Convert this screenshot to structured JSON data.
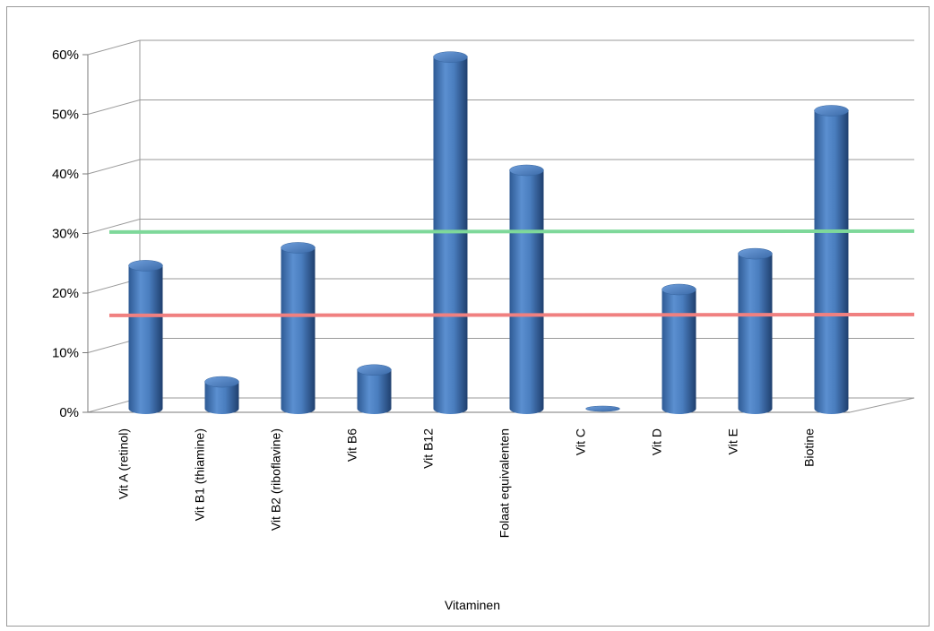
{
  "chart_data": {
    "type": "bar",
    "style": "3d-cylinder",
    "title": "",
    "xlabel": "Vitaminen",
    "ylabel": "",
    "categories": [
      "Vit A (retinol)",
      "Vit B1 (thiamine)",
      "Vit B2 (riboflavine)",
      "Vit B6",
      "Vit B12",
      "Folaat equivalenten",
      "Vit C",
      "Vit D",
      "Vit E",
      "Biotine"
    ],
    "values": [
      24,
      4.5,
      27,
      6.5,
      59,
      40,
      0,
      20,
      26,
      50
    ],
    "ylim": [
      0,
      60
    ],
    "yticks": [
      "0%",
      "10%",
      "20%",
      "30%",
      "40%",
      "50%",
      "60%"
    ],
    "reference_lines": [
      {
        "value": 29.5,
        "color": "#7ed89a"
      },
      {
        "value": 15.5,
        "color": "#f08080"
      }
    ],
    "bar_color": "#4a7ebf",
    "grid": true,
    "legend": "none"
  }
}
